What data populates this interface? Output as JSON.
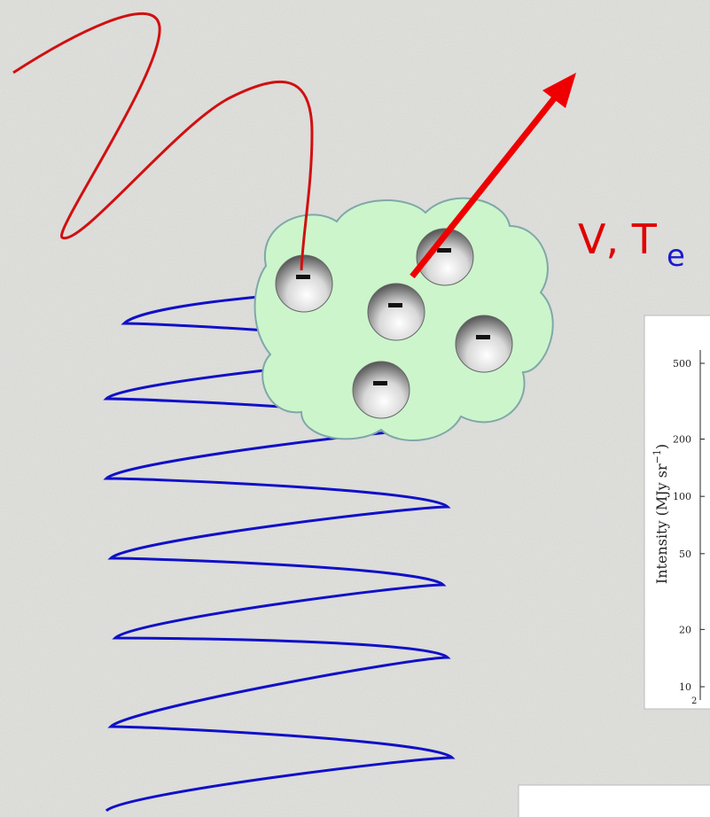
{
  "label": {
    "main": "V, T",
    "subscript": "e"
  },
  "inset": {
    "y_label": "Intensity (MJy sr",
    "y_label_sup": "−1",
    "y_label_end": ")",
    "yticks": [
      500,
      200,
      100,
      50,
      20,
      10
    ],
    "x_partial": "2"
  }
}
